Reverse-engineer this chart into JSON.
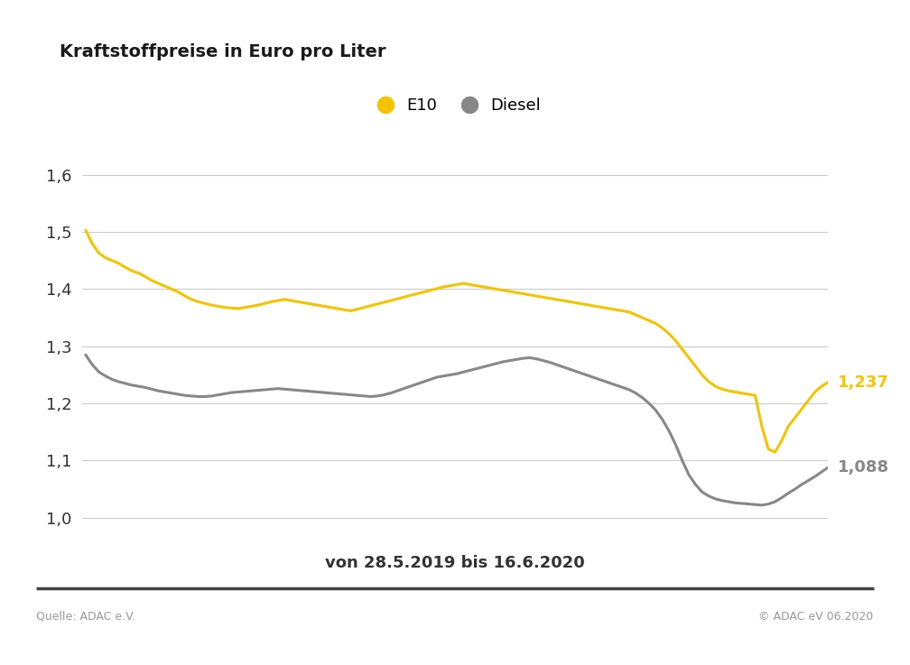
{
  "title": "Kraftstoffpreise in Euro pro Liter",
  "subtitle": "von 28.5.2019 bis 16.6.2020",
  "source_left": "Quelle: ADAC e.V.",
  "source_right": "© ADAC eV 06.2020",
  "legend_e10": "E10",
  "legend_diesel": "Diesel",
  "e10_color": "#F5C400",
  "diesel_color": "#888888",
  "background_color": "#FFFFFF",
  "ylim": [
    0.975,
    1.65
  ],
  "yticks": [
    1.0,
    1.1,
    1.2,
    1.3,
    1.4,
    1.5,
    1.6
  ],
  "ytick_labels": [
    "1,0",
    "1,1",
    "1,2",
    "1,3",
    "1,4",
    "1,5",
    "1,6"
  ],
  "e10_final_label": "1,237",
  "diesel_final_label": "1,088",
  "e10_data": [
    1.503,
    1.48,
    1.463,
    1.455,
    1.45,
    1.445,
    1.438,
    1.432,
    1.428,
    1.422,
    1.415,
    1.41,
    1.405,
    1.4,
    1.395,
    1.388,
    1.382,
    1.378,
    1.375,
    1.372,
    1.37,
    1.368,
    1.367,
    1.366,
    1.368,
    1.37,
    1.372,
    1.375,
    1.378,
    1.38,
    1.382,
    1.38,
    1.378,
    1.376,
    1.374,
    1.372,
    1.37,
    1.368,
    1.366,
    1.364,
    1.362,
    1.365,
    1.368,
    1.371,
    1.374,
    1.377,
    1.38,
    1.383,
    1.386,
    1.389,
    1.392,
    1.395,
    1.398,
    1.401,
    1.404,
    1.406,
    1.408,
    1.41,
    1.408,
    1.406,
    1.404,
    1.402,
    1.4,
    1.398,
    1.396,
    1.394,
    1.392,
    1.39,
    1.388,
    1.386,
    1.384,
    1.382,
    1.38,
    1.378,
    1.376,
    1.374,
    1.372,
    1.37,
    1.368,
    1.366,
    1.364,
    1.362,
    1.36,
    1.355,
    1.35,
    1.345,
    1.34,
    1.332,
    1.322,
    1.31,
    1.295,
    1.28,
    1.265,
    1.25,
    1.238,
    1.23,
    1.225,
    1.222,
    1.22,
    1.218,
    1.216,
    1.214,
    1.16,
    1.12,
    1.115,
    1.135,
    1.16,
    1.175,
    1.19,
    1.205,
    1.22,
    1.23,
    1.237
  ],
  "diesel_data": [
    1.285,
    1.268,
    1.255,
    1.248,
    1.242,
    1.238,
    1.235,
    1.232,
    1.23,
    1.228,
    1.225,
    1.222,
    1.22,
    1.218,
    1.216,
    1.214,
    1.213,
    1.212,
    1.212,
    1.213,
    1.215,
    1.217,
    1.219,
    1.22,
    1.221,
    1.222,
    1.223,
    1.224,
    1.225,
    1.226,
    1.225,
    1.224,
    1.223,
    1.222,
    1.221,
    1.22,
    1.219,
    1.218,
    1.217,
    1.216,
    1.215,
    1.214,
    1.213,
    1.212,
    1.213,
    1.215,
    1.218,
    1.222,
    1.226,
    1.23,
    1.234,
    1.238,
    1.242,
    1.246,
    1.248,
    1.25,
    1.252,
    1.255,
    1.258,
    1.261,
    1.264,
    1.267,
    1.27,
    1.273,
    1.275,
    1.277,
    1.279,
    1.28,
    1.278,
    1.275,
    1.272,
    1.268,
    1.264,
    1.26,
    1.256,
    1.252,
    1.248,
    1.244,
    1.24,
    1.236,
    1.232,
    1.228,
    1.224,
    1.218,
    1.21,
    1.2,
    1.188,
    1.172,
    1.152,
    1.128,
    1.1,
    1.075,
    1.058,
    1.045,
    1.038,
    1.033,
    1.03,
    1.028,
    1.026,
    1.025,
    1.024,
    1.023,
    1.022,
    1.024,
    1.028,
    1.035,
    1.043,
    1.05,
    1.058,
    1.065,
    1.072,
    1.08,
    1.088
  ]
}
